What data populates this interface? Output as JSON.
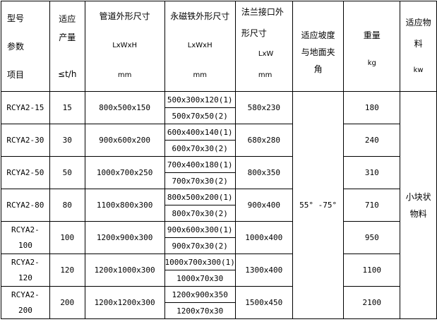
{
  "header": {
    "model": [
      "型号",
      "参数",
      "项目"
    ],
    "capacity": [
      "适应",
      "产量",
      "≤t/h"
    ],
    "pipe": [
      "管道外形尺寸",
      "LxWxH",
      "mm"
    ],
    "magnet": [
      "永磁铁外形尺寸",
      "LxWxH",
      "mm"
    ],
    "flange": [
      "法兰接口外",
      "形尺寸",
      "LxW",
      "mm"
    ],
    "angle": [
      "适应坡度",
      "与地面夹",
      "角"
    ],
    "weight": [
      "重量",
      "kg"
    ],
    "material": [
      "适应物",
      "料",
      "kw"
    ]
  },
  "rows": [
    {
      "model": "RCYA2-15",
      "capacity": "15",
      "pipe": "800x500x150",
      "magnet1": "500x300x120(1)",
      "magnet2": "500x70x50(2)",
      "flange": "580x230",
      "weight": "180"
    },
    {
      "model": "RCYA2-30",
      "capacity": "30",
      "pipe": "900x600x200",
      "magnet1": "600x400x140(1)",
      "magnet2": "600x70x30(2)",
      "flange": "680x280",
      "weight": "240"
    },
    {
      "model": "RCYA2-50",
      "capacity": "50",
      "pipe": "1000x700x250",
      "magnet1": "700x400x180(1)",
      "magnet2": "700x70x30(2)",
      "flange": "800x350",
      "weight": "310"
    },
    {
      "model": "RCYA2-80",
      "capacity": "80",
      "pipe": "1100x800x300",
      "magnet1": "800x500x200(1)",
      "magnet2": "800x70x30(2)",
      "flange": "900x400",
      "weight": "710"
    },
    {
      "model": "RCYA2-100",
      "capacity": "100",
      "pipe": "1200x900x300",
      "magnet1": "900x600x300(1)",
      "magnet2": "900x70x30(2)",
      "flange": "1000x400",
      "weight": "950"
    },
    {
      "model": "RCYA2-120",
      "capacity": "120",
      "pipe": "1200x1000x300",
      "magnet1": "1000x700x300(1)",
      "magnet2": "1000x70x30",
      "flange": "1300x400",
      "weight": "1100"
    },
    {
      "model": "RCYA2-200",
      "capacity": "200",
      "pipe": "1200x1200x300",
      "magnet1": "1200x900x350",
      "magnet2": "1200x70x30",
      "flange": "1500x450",
      "weight": "2100"
    }
  ],
  "angle_value": "55° -75°",
  "material_value": [
    "小块状",
    "物料"
  ]
}
